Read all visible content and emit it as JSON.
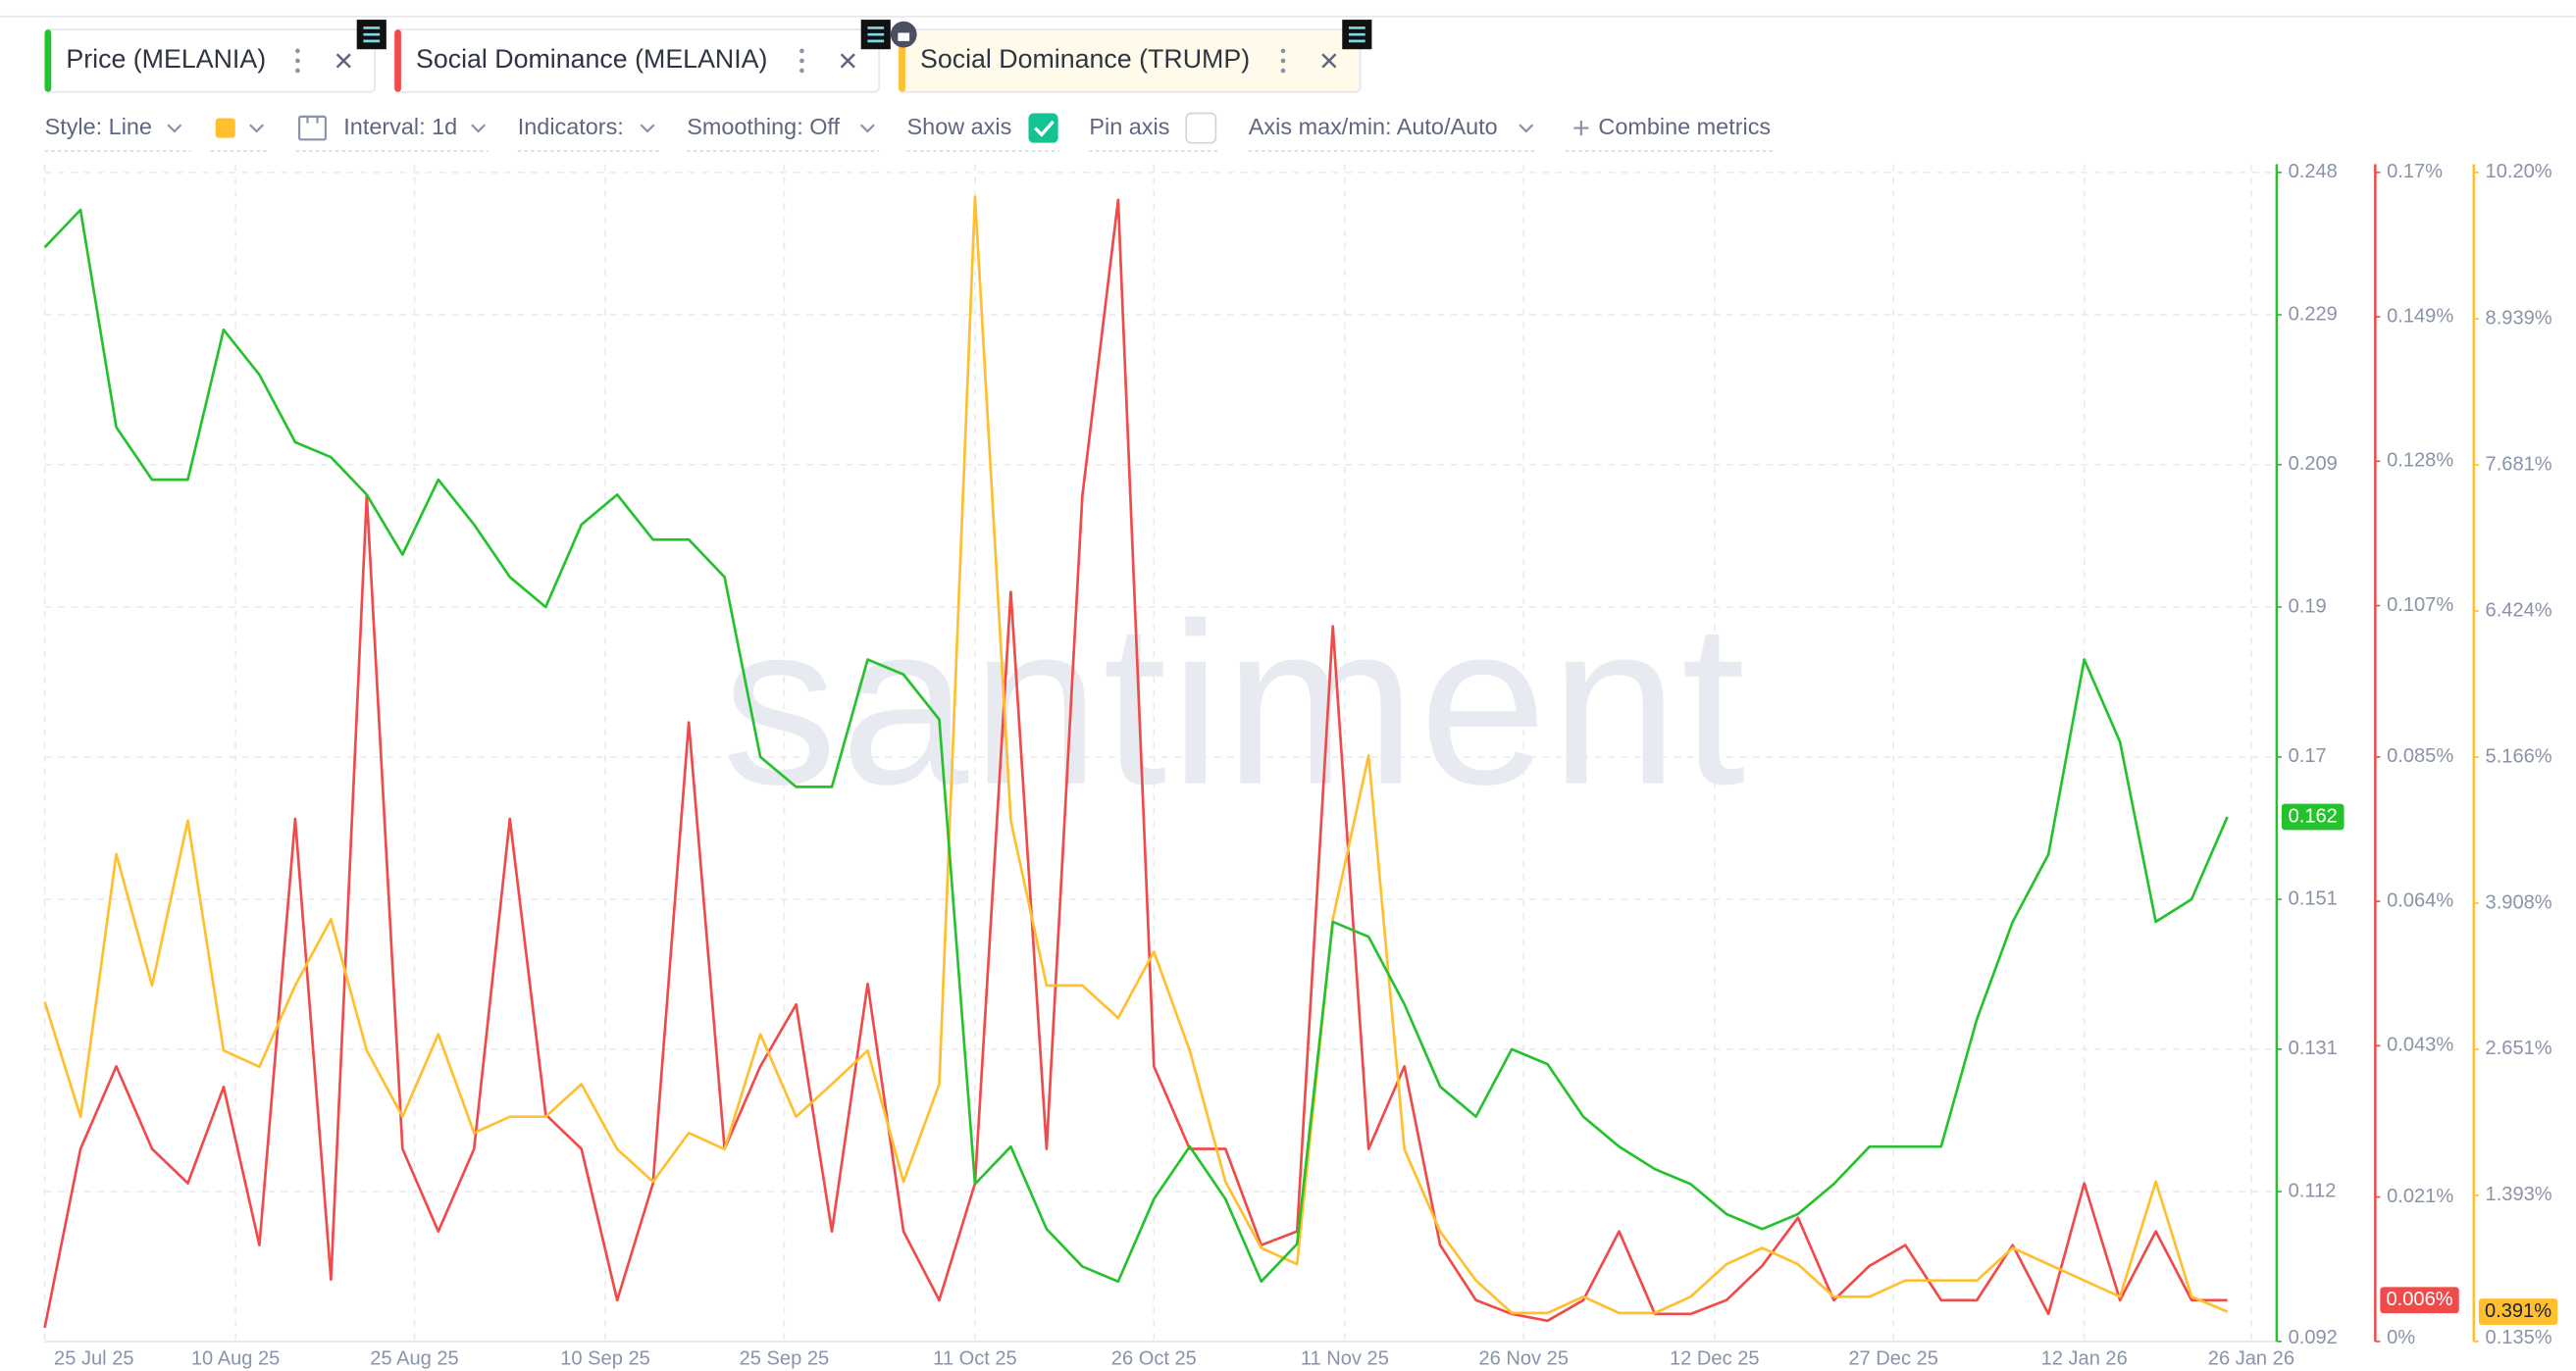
{
  "toolbar": {
    "style": "Style: Line",
    "interval": "Interval: 1d",
    "indicators": "Indicators:",
    "smoothing": "Smoothing: Off",
    "show_axis": "Show axis",
    "show_axis_checked": true,
    "pin_axis": "Pin axis",
    "pin_axis_checked": false,
    "axis_range": "Axis max/min: Auto/Auto",
    "combine": "Combine metrics"
  },
  "chart_data": {
    "type": "line",
    "watermark": "santiment",
    "grid": true,
    "x": [
      "2025-07-25",
      "2025-07-28",
      "2025-07-31",
      "2025-08-03",
      "2025-08-06",
      "2025-08-09",
      "2025-08-12",
      "2025-08-15",
      "2025-08-18",
      "2025-08-21",
      "2025-08-24",
      "2025-08-27",
      "2025-08-30",
      "2025-09-02",
      "2025-09-05",
      "2025-09-08",
      "2025-09-11",
      "2025-09-14",
      "2025-09-17",
      "2025-09-20",
      "2025-09-23",
      "2025-09-26",
      "2025-09-29",
      "2025-10-02",
      "2025-10-05",
      "2025-10-08",
      "2025-10-11",
      "2025-10-14",
      "2025-10-17",
      "2025-10-20",
      "2025-10-23",
      "2025-10-26",
      "2025-10-29",
      "2025-11-01",
      "2025-11-04",
      "2025-11-07",
      "2025-11-10",
      "2025-11-13",
      "2025-11-16",
      "2025-11-19",
      "2025-11-22",
      "2025-11-25",
      "2025-11-28",
      "2025-12-01",
      "2025-12-04",
      "2025-12-07",
      "2025-12-10",
      "2025-12-13",
      "2025-12-16",
      "2025-12-19",
      "2025-12-22",
      "2025-12-25",
      "2025-12-28",
      "2025-12-31",
      "2026-01-03",
      "2026-01-06",
      "2026-01-09",
      "2026-01-12",
      "2026-01-15",
      "2026-01-18",
      "2026-01-21",
      "2026-01-24"
    ],
    "xlim": [
      "2025-07-25",
      "2026-01-28"
    ],
    "xticks": [
      {
        "value": "2025-07-25",
        "label": "25 Jul 25"
      },
      {
        "value": "2025-08-10",
        "label": "10 Aug 25"
      },
      {
        "value": "2025-08-25",
        "label": "25 Aug 25"
      },
      {
        "value": "2025-09-10",
        "label": "10 Sep 25"
      },
      {
        "value": "2025-09-25",
        "label": "25 Sep 25"
      },
      {
        "value": "2025-10-11",
        "label": "11 Oct 25"
      },
      {
        "value": "2025-10-26",
        "label": "26 Oct 25"
      },
      {
        "value": "2025-11-11",
        "label": "11 Nov 25"
      },
      {
        "value": "2025-11-26",
        "label": "26 Nov 25"
      },
      {
        "value": "2025-12-12",
        "label": "12 Dec 25"
      },
      {
        "value": "2025-12-27",
        "label": "27 Dec 25"
      },
      {
        "value": "2026-01-12",
        "label": "12 Jan 26"
      },
      {
        "value": "2026-01-26",
        "label": "26 Jan 26"
      }
    ],
    "ylim": [
      0.092,
      0.248
    ],
    "yticks": [
      0.092,
      0.112,
      0.131,
      0.151,
      0.17,
      0.19,
      0.209,
      0.229,
      0.248
    ],
    "y2lim": [
      0,
      0.17
    ],
    "y2ticks": [
      {
        "value": 0,
        "label": "0%"
      },
      {
        "value": 0.021,
        "label": "0.021%"
      },
      {
        "value": 0.043,
        "label": "0.043%"
      },
      {
        "value": 0.064,
        "label": "0.064%"
      },
      {
        "value": 0.085,
        "label": "0.085%"
      },
      {
        "value": 0.107,
        "label": "0.107%"
      },
      {
        "value": 0.128,
        "label": "0.128%"
      },
      {
        "value": 0.149,
        "label": "0.149%"
      },
      {
        "value": 0.17,
        "label": "0.17%"
      }
    ],
    "y3lim": [
      0.135,
      10.2
    ],
    "y3ticks": [
      {
        "value": 0.135,
        "label": "0.135%"
      },
      {
        "value": 1.393,
        "label": "1.393%"
      },
      {
        "value": 2.651,
        "label": "2.651%"
      },
      {
        "value": 3.908,
        "label": "3.908%"
      },
      {
        "value": 5.166,
        "label": "5.166%"
      },
      {
        "value": 6.424,
        "label": "6.424%"
      },
      {
        "value": 7.681,
        "label": "7.681%"
      },
      {
        "value": 8.939,
        "label": "8.939%"
      },
      {
        "value": 10.2,
        "label": "10.20%"
      }
    ],
    "series": [
      {
        "name": "Price (MELANIA)",
        "color": "#26c22e",
        "axis": "y",
        "values": [
          0.238,
          0.243,
          0.214,
          0.207,
          0.207,
          0.227,
          0.221,
          0.212,
          0.21,
          0.205,
          0.197,
          0.207,
          0.201,
          0.194,
          0.19,
          0.201,
          0.205,
          0.199,
          0.199,
          0.194,
          0.17,
          0.166,
          0.166,
          0.183,
          0.181,
          0.175,
          0.113,
          0.118,
          0.107,
          0.102,
          0.1,
          0.111,
          0.118,
          0.111,
          0.1,
          0.105,
          0.148,
          0.146,
          0.137,
          0.126,
          0.122,
          0.131,
          0.129,
          0.122,
          0.118,
          0.115,
          0.113,
          0.109,
          0.107,
          0.109,
          0.113,
          0.118,
          0.118,
          0.118,
          0.135,
          0.148,
          0.157,
          0.183,
          0.172,
          0.148,
          0.151,
          0.162
        ],
        "last_value": 0.162
      },
      {
        "name": "Social Dominance (MELANIA)",
        "color": "#f04a4a",
        "axis": "y2",
        "values": [
          0.002,
          0.028,
          0.04,
          0.028,
          0.023,
          0.037,
          0.014,
          0.076,
          0.009,
          0.123,
          0.028,
          0.016,
          0.028,
          0.076,
          0.033,
          0.028,
          0.006,
          0.023,
          0.09,
          0.028,
          0.04,
          0.049,
          0.016,
          0.052,
          0.016,
          0.006,
          0.023,
          0.109,
          0.028,
          0.123,
          0.166,
          0.04,
          0.028,
          0.028,
          0.014,
          0.016,
          0.104,
          0.028,
          0.04,
          0.014,
          0.006,
          0.004,
          0.003,
          0.006,
          0.016,
          0.004,
          0.004,
          0.006,
          0.011,
          0.018,
          0.006,
          0.011,
          0.014,
          0.006,
          0.006,
          0.014,
          0.004,
          0.023,
          0.006,
          0.016,
          0.006,
          0.006
        ],
        "last_value": {
          "value": 0.006,
          "label": "0.006%"
        }
      },
      {
        "name": "Social Dominance (TRUMP)",
        "color": "#ffbf2e",
        "axis": "y3",
        "values": [
          3.06,
          2.07,
          4.33,
          3.2,
          4.62,
          2.64,
          2.5,
          3.2,
          3.77,
          2.64,
          2.07,
          2.78,
          1.93,
          2.07,
          2.07,
          2.35,
          1.79,
          1.51,
          1.93,
          1.79,
          2.78,
          2.07,
          2.35,
          2.64,
          1.51,
          2.35,
          9.99,
          4.62,
          3.2,
          3.2,
          2.92,
          3.49,
          2.64,
          1.51,
          0.94,
          0.8,
          3.77,
          5.18,
          1.79,
          1.08,
          0.66,
          0.38,
          0.38,
          0.52,
          0.38,
          0.38,
          0.52,
          0.8,
          0.94,
          0.8,
          0.52,
          0.52,
          0.66,
          0.66,
          0.66,
          0.94,
          0.8,
          0.66,
          0.52,
          1.51,
          0.52,
          0.391
        ],
        "last_value": {
          "value": 0.391,
          "label": "0.391%"
        }
      }
    ]
  }
}
